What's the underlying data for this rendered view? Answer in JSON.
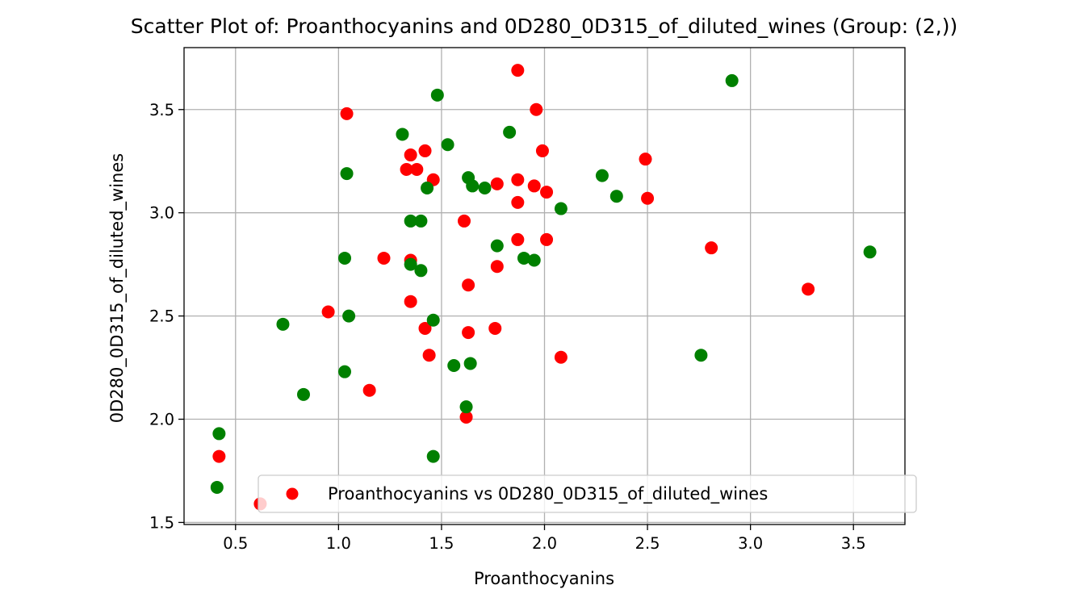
{
  "chart_data": {
    "type": "scatter",
    "title": "Scatter Plot of: Proanthocyanins and 0D280_0D315_of_diluted_wines (Group: (2,))",
    "xlabel": "Proanthocyanins",
    "ylabel": "0D280_0D315_of_diluted_wines",
    "xlim": [
      0.25,
      3.75
    ],
    "ylim": [
      1.49,
      3.8
    ],
    "xticks": [
      "0.5",
      "1.0",
      "1.5",
      "2.0",
      "2.5",
      "3.0",
      "3.5"
    ],
    "xtick_values": [
      0.5,
      1.0,
      1.5,
      2.0,
      2.5,
      3.0,
      3.5
    ],
    "yticks": [
      "1.5",
      "2.0",
      "2.5",
      "3.0",
      "3.5"
    ],
    "ytick_values": [
      1.5,
      2.0,
      2.5,
      3.0,
      3.5
    ],
    "grid": true,
    "legend": {
      "placement": "lower-right",
      "entries": [
        "Proanthocyanins vs 0D280_0D315_of_diluted_wines"
      ]
    },
    "colors": {
      "red": "#ff0000",
      "green": "#008000",
      "grid": "#b0b0b0"
    },
    "series": [
      {
        "name": "Proanthocyanins vs 0D280_0D315_of_diluted_wines",
        "color": "#ff0000",
        "x": [
          1.87,
          1.04,
          1.96,
          1.99,
          1.42,
          1.35,
          1.33,
          1.38,
          1.46,
          2.49,
          2.5,
          1.77,
          1.87,
          1.95,
          2.01,
          1.87,
          1.61,
          2.01,
          1.87,
          2.81,
          1.22,
          1.35,
          1.77,
          1.63,
          3.28,
          0.95,
          1.35,
          1.42,
          1.63,
          1.76,
          1.44,
          2.08,
          1.15,
          1.62,
          0.42,
          0.62
        ],
        "y": [
          3.69,
          3.48,
          3.5,
          3.3,
          3.3,
          3.28,
          3.21,
          3.21,
          3.16,
          3.26,
          3.07,
          3.14,
          3.16,
          3.13,
          3.1,
          3.05,
          2.96,
          2.87,
          2.87,
          2.83,
          2.78,
          2.77,
          2.74,
          2.65,
          2.63,
          2.52,
          2.57,
          2.44,
          2.42,
          2.44,
          2.31,
          2.3,
          2.14,
          2.01,
          1.82,
          1.59
        ]
      },
      {
        "name": "",
        "color": "#008000",
        "x": [
          2.91,
          1.48,
          1.31,
          1.83,
          1.53,
          1.04,
          1.63,
          1.65,
          1.71,
          1.43,
          2.28,
          2.35,
          2.08,
          1.35,
          1.4,
          1.77,
          1.03,
          1.9,
          1.95,
          1.35,
          1.4,
          3.58,
          1.05,
          0.73,
          1.46,
          2.76,
          1.56,
          1.64,
          1.03,
          0.83,
          1.62,
          0.42,
          1.46,
          0.41
        ],
        "y": [
          3.64,
          3.57,
          3.38,
          3.39,
          3.33,
          3.19,
          3.17,
          3.13,
          3.12,
          3.12,
          3.18,
          3.08,
          3.02,
          2.96,
          2.96,
          2.84,
          2.78,
          2.78,
          2.77,
          2.75,
          2.72,
          2.81,
          2.5,
          2.46,
          2.48,
          2.31,
          2.26,
          2.27,
          2.23,
          2.12,
          2.06,
          1.93,
          1.82,
          1.67
        ]
      }
    ]
  }
}
